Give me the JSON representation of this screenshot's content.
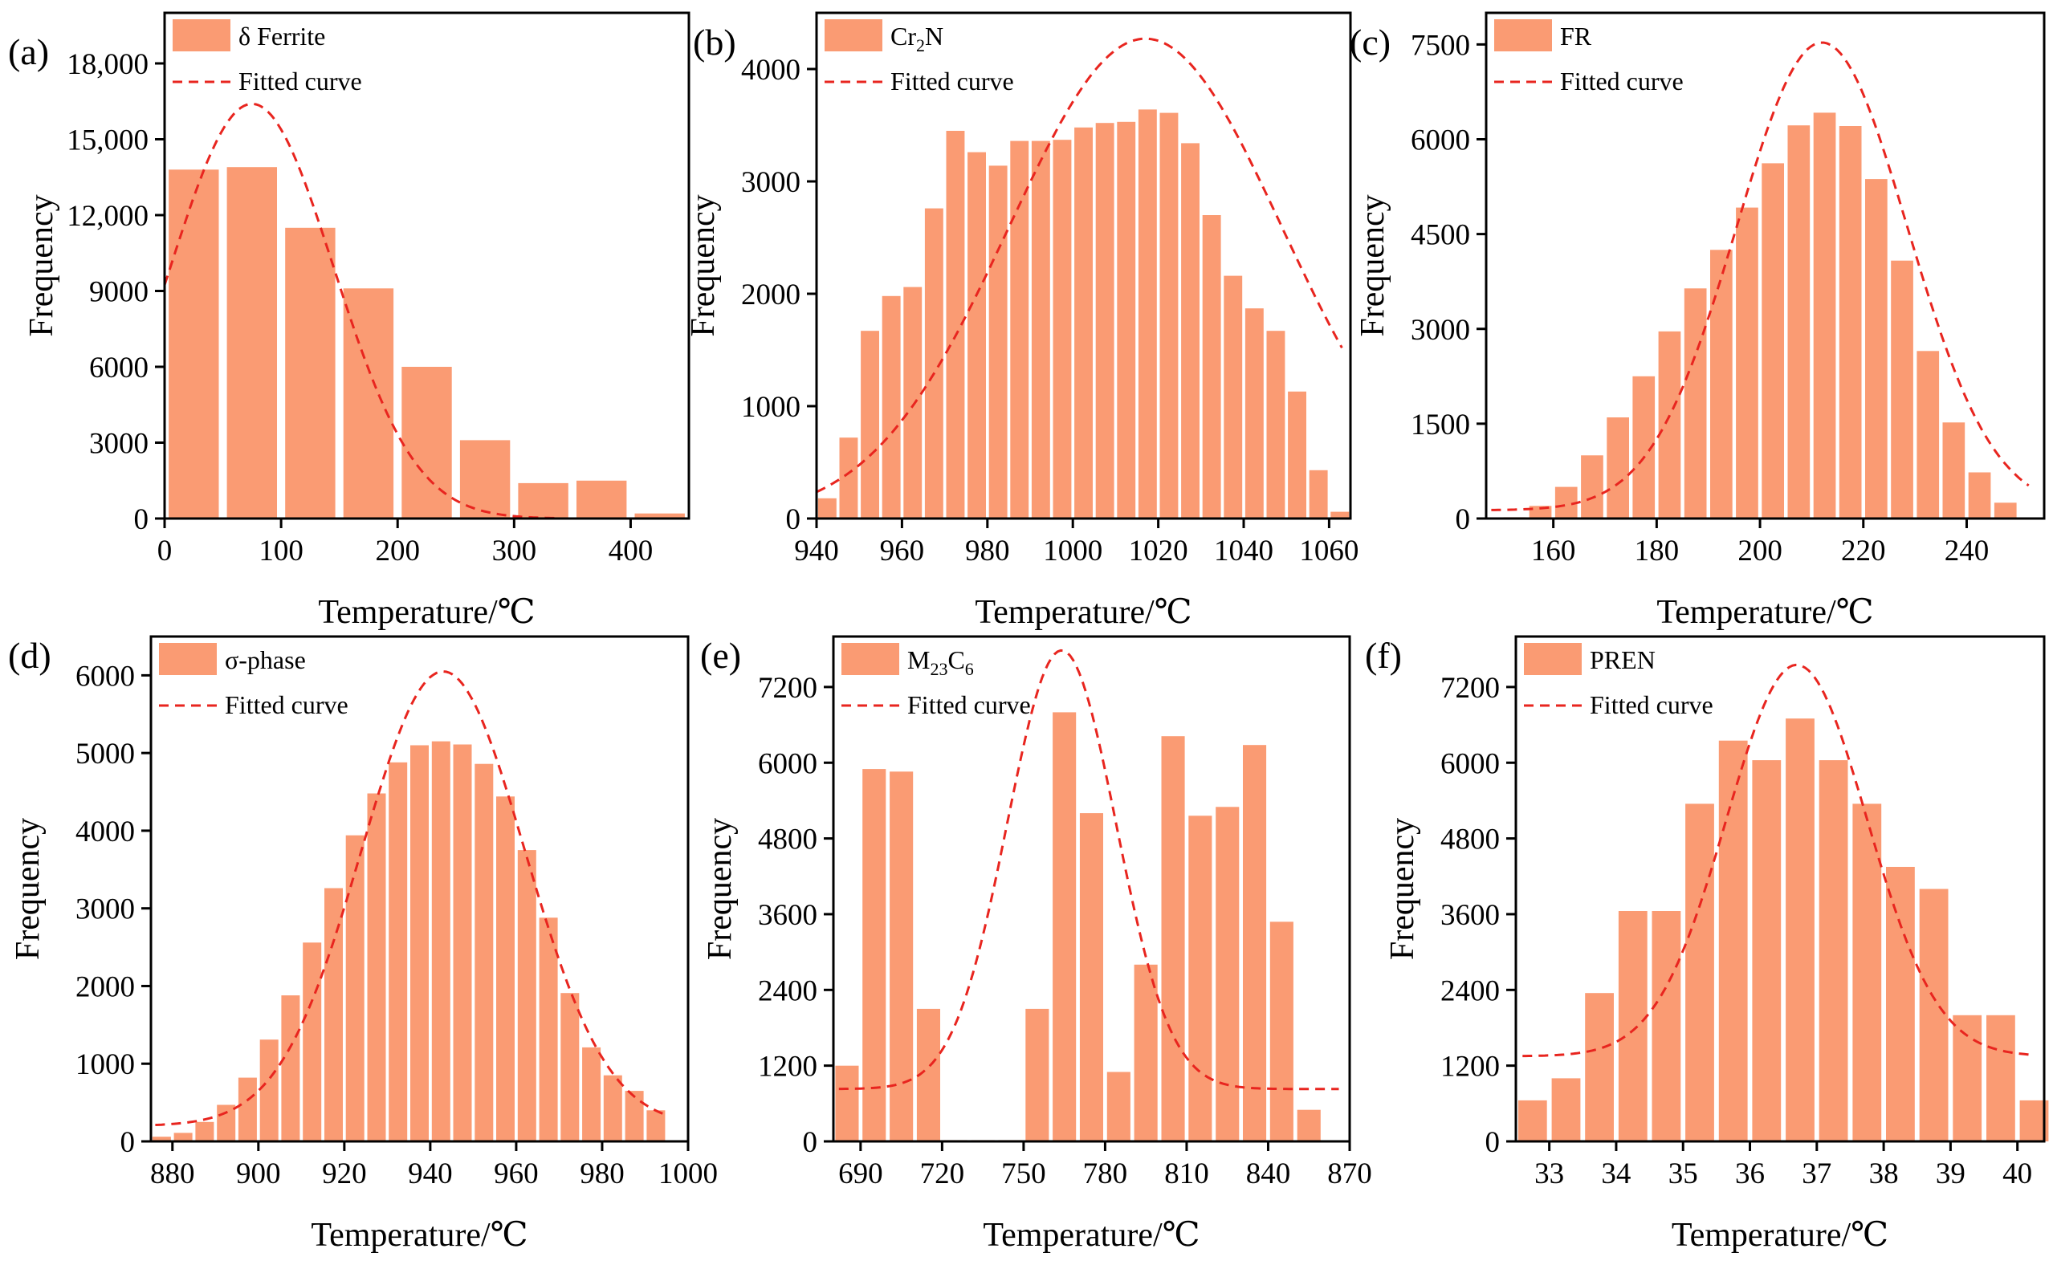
{
  "colors": {
    "bar": "#fa9b73",
    "fit": "#e8251f",
    "axis": "#000000"
  },
  "chart_data": [
    {
      "id": "a",
      "panel_label": "(a)",
      "type": "bar",
      "legend_bar": "δ Ferrite",
      "legend_sub": "",
      "legend_bar_suffix": "",
      "legend_fit": "Fitted curve",
      "xlabel": "Temperature/℃",
      "ylabel": "Frequency",
      "xlim": [
        0,
        450
      ],
      "ylim": [
        0,
        20000
      ],
      "xticks": [
        0,
        100,
        200,
        300,
        400
      ],
      "xtick_labels": [
        "0",
        "100",
        "200",
        "300",
        "400"
      ],
      "yticks": [
        0,
        3000,
        6000,
        9000,
        12000,
        15000,
        18000
      ],
      "ytick_labels": [
        "0",
        "3000",
        "6000",
        "9000",
        "12,000",
        "15,000",
        "18,000"
      ],
      "bin_width": 50,
      "bins": [
        {
          "x": 25,
          "y": 13800
        },
        {
          "x": 75,
          "y": 13900
        },
        {
          "x": 125,
          "y": 11500
        },
        {
          "x": 175,
          "y": 9100
        },
        {
          "x": 225,
          "y": 6000
        },
        {
          "x": 275,
          "y": 3100
        },
        {
          "x": 325,
          "y": 1400
        },
        {
          "x": 375,
          "y": 1500
        },
        {
          "x": 425,
          "y": 200
        }
      ],
      "fit": {
        "mu": 75,
        "sigma": 70,
        "amp": 16400,
        "base": 0,
        "x_from": 0,
        "x_to": 340
      }
    },
    {
      "id": "b",
      "panel_label": "(b)",
      "type": "bar",
      "legend_bar": "Cr",
      "legend_sub": "2",
      "legend_bar_suffix": "N",
      "legend_fit": "Fitted curve",
      "xlabel": "Temperature/℃",
      "ylabel": "Frequency",
      "xlim": [
        940,
        1065
      ],
      "ylim": [
        0,
        4500
      ],
      "xticks": [
        940,
        960,
        980,
        1000,
        1020,
        1040,
        1060
      ],
      "xtick_labels": [
        "940",
        "960",
        "980",
        "1000",
        "1020",
        "1040",
        "1060"
      ],
      "yticks": [
        0,
        1000,
        2000,
        3000,
        4000
      ],
      "ytick_labels": [
        "0",
        "1000",
        "2000",
        "3000",
        "4000"
      ],
      "bin_width": 5,
      "bins": [
        {
          "x": 942.5,
          "y": 180
        },
        {
          "x": 947.5,
          "y": 720
        },
        {
          "x": 952.5,
          "y": 1670
        },
        {
          "x": 957.5,
          "y": 1980
        },
        {
          "x": 962.5,
          "y": 2060
        },
        {
          "x": 967.5,
          "y": 2760
        },
        {
          "x": 972.5,
          "y": 3450
        },
        {
          "x": 977.5,
          "y": 3260
        },
        {
          "x": 982.5,
          "y": 3140
        },
        {
          "x": 987.5,
          "y": 3360
        },
        {
          "x": 992.5,
          "y": 3360
        },
        {
          "x": 997.5,
          "y": 3370
        },
        {
          "x": 1002.5,
          "y": 3480
        },
        {
          "x": 1007.5,
          "y": 3520
        },
        {
          "x": 1012.5,
          "y": 3530
        },
        {
          "x": 1017.5,
          "y": 3640
        },
        {
          "x": 1022.5,
          "y": 3610
        },
        {
          "x": 1027.5,
          "y": 3340
        },
        {
          "x": 1032.5,
          "y": 2700
        },
        {
          "x": 1037.5,
          "y": 2160
        },
        {
          "x": 1042.5,
          "y": 1870
        },
        {
          "x": 1047.5,
          "y": 1670
        },
        {
          "x": 1052.5,
          "y": 1130
        },
        {
          "x": 1057.5,
          "y": 430
        },
        {
          "x": 1062.5,
          "y": 60
        }
      ],
      "fit": {
        "mu": 1017,
        "sigma": 32,
        "amp": 4270,
        "base": 0,
        "x_from": 940,
        "x_to": 1063
      }
    },
    {
      "id": "c",
      "panel_label": "(c)",
      "type": "bar",
      "legend_bar": "FR",
      "legend_sub": "",
      "legend_bar_suffix": "",
      "legend_fit": "Fitted curve",
      "xlabel": "Temperature/℃",
      "ylabel": "Frequency",
      "xlim": [
        147,
        255
      ],
      "ylim": [
        0,
        8000
      ],
      "xticks": [
        160,
        180,
        200,
        220,
        240
      ],
      "xtick_labels": [
        "160",
        "180",
        "200",
        "220",
        "240"
      ],
      "yticks": [
        0,
        1500,
        3000,
        4500,
        6000,
        7500
      ],
      "ytick_labels": [
        "0",
        "1500",
        "3000",
        "4500",
        "6000",
        "7500"
      ],
      "bin_width": 5,
      "bins": [
        {
          "x": 152.5,
          "y": 20
        },
        {
          "x": 157.5,
          "y": 200
        },
        {
          "x": 162.5,
          "y": 500
        },
        {
          "x": 167.5,
          "y": 1000
        },
        {
          "x": 172.5,
          "y": 1600
        },
        {
          "x": 177.5,
          "y": 2250
        },
        {
          "x": 182.5,
          "y": 2960
        },
        {
          "x": 187.5,
          "y": 3640
        },
        {
          "x": 192.5,
          "y": 4250
        },
        {
          "x": 197.5,
          "y": 4920
        },
        {
          "x": 202.5,
          "y": 5620
        },
        {
          "x": 207.5,
          "y": 6220
        },
        {
          "x": 212.5,
          "y": 6420
        },
        {
          "x": 217.5,
          "y": 6210
        },
        {
          "x": 222.5,
          "y": 5370
        },
        {
          "x": 227.5,
          "y": 4080
        },
        {
          "x": 232.5,
          "y": 2650
        },
        {
          "x": 237.5,
          "y": 1520
        },
        {
          "x": 242.5,
          "y": 730
        },
        {
          "x": 247.5,
          "y": 250
        }
      ],
      "fit": {
        "mu": 212,
        "sigma": 16.5,
        "amp": 7400,
        "base": 130,
        "x_from": 148,
        "x_to": 252
      }
    },
    {
      "id": "d",
      "panel_label": "(d)",
      "type": "bar",
      "legend_bar": "σ-phase",
      "legend_sub": "",
      "legend_bar_suffix": "",
      "legend_fit": "Fitted curve",
      "xlabel": "Temperature/℃",
      "ylabel": "Frequency",
      "xlim": [
        875,
        1000
      ],
      "ylim": [
        0,
        6500
      ],
      "xticks": [
        880,
        900,
        920,
        940,
        960,
        980,
        1000
      ],
      "xtick_labels": [
        "880",
        "900",
        "920",
        "940",
        "960",
        "980",
        "1000"
      ],
      "yticks": [
        0,
        1000,
        2000,
        3000,
        4000,
        5000,
        6000
      ],
      "ytick_labels": [
        "0",
        "1000",
        "2000",
        "3000",
        "4000",
        "5000",
        "6000"
      ],
      "bin_width": 5,
      "bins": [
        {
          "x": 877.5,
          "y": 60
        },
        {
          "x": 882.5,
          "y": 110
        },
        {
          "x": 887.5,
          "y": 250
        },
        {
          "x": 892.5,
          "y": 470
        },
        {
          "x": 897.5,
          "y": 820
        },
        {
          "x": 902.5,
          "y": 1310
        },
        {
          "x": 907.5,
          "y": 1880
        },
        {
          "x": 912.5,
          "y": 2560
        },
        {
          "x": 917.5,
          "y": 3260
        },
        {
          "x": 922.5,
          "y": 3940
        },
        {
          "x": 927.5,
          "y": 4480
        },
        {
          "x": 932.5,
          "y": 4880
        },
        {
          "x": 937.5,
          "y": 5100
        },
        {
          "x": 942.5,
          "y": 5150
        },
        {
          "x": 947.5,
          "y": 5110
        },
        {
          "x": 952.5,
          "y": 4860
        },
        {
          "x": 957.5,
          "y": 4440
        },
        {
          "x": 962.5,
          "y": 3750
        },
        {
          "x": 967.5,
          "y": 2880
        },
        {
          "x": 972.5,
          "y": 1910
        },
        {
          "x": 977.5,
          "y": 1210
        },
        {
          "x": 982.5,
          "y": 850
        },
        {
          "x": 987.5,
          "y": 650
        },
        {
          "x": 992.5,
          "y": 400
        }
      ],
      "fit": {
        "mu": 943,
        "sigma": 19,
        "amp": 5850,
        "base": 200,
        "x_from": 876,
        "x_to": 995
      }
    },
    {
      "id": "e",
      "panel_label": "(e)",
      "type": "bar",
      "legend_bar": "M",
      "legend_sub": "23",
      "legend_bar_suffix": "C",
      "legend_sub2": "6",
      "legend_fit": "Fitted curve",
      "xlabel": "Temperature/℃",
      "ylabel": "Frequency",
      "xlim": [
        680,
        870
      ],
      "ylim": [
        0,
        8000
      ],
      "xticks": [
        690,
        720,
        750,
        780,
        810,
        840,
        870
      ],
      "xtick_labels": [
        "690",
        "720",
        "750",
        "780",
        "810",
        "840",
        "870"
      ],
      "yticks": [
        0,
        1200,
        2400,
        3600,
        4800,
        6000,
        7200
      ],
      "ytick_labels": [
        "0",
        "1200",
        "2400",
        "3600",
        "4800",
        "6000",
        "7200"
      ],
      "bin_width": 10,
      "bins": [
        {
          "x": 685,
          "y": 1200
        },
        {
          "x": 695,
          "y": 5900
        },
        {
          "x": 705,
          "y": 5860
        },
        {
          "x": 715,
          "y": 2100
        },
        {
          "x": 725,
          "y": 20
        },
        {
          "x": 735,
          "y": 20
        },
        {
          "x": 745,
          "y": 20
        },
        {
          "x": 755,
          "y": 2100
        },
        {
          "x": 765,
          "y": 6800
        },
        {
          "x": 775,
          "y": 5200
        },
        {
          "x": 785,
          "y": 1100
        },
        {
          "x": 795,
          "y": 2800
        },
        {
          "x": 805,
          "y": 6420
        },
        {
          "x": 815,
          "y": 5160
        },
        {
          "x": 825,
          "y": 5300
        },
        {
          "x": 835,
          "y": 6280
        },
        {
          "x": 845,
          "y": 3480
        },
        {
          "x": 855,
          "y": 500
        }
      ],
      "fit": {
        "mu": 764,
        "sigma": 20,
        "amp": 6950,
        "base": 830,
        "x_from": 682,
        "x_to": 866
      }
    },
    {
      "id": "f",
      "panel_label": "(f)",
      "type": "bar",
      "legend_bar": "PREN",
      "legend_sub": "",
      "legend_bar_suffix": "",
      "legend_fit": "Fitted curve",
      "xlabel": "Temperature/℃",
      "ylabel": "Frequency",
      "xlim": [
        32.5,
        40.4
      ],
      "ylim": [
        0,
        8000
      ],
      "xticks": [
        33,
        34,
        35,
        36,
        37,
        38,
        39,
        40
      ],
      "xtick_labels": [
        "33",
        "34",
        "35",
        "36",
        "37",
        "38",
        "39",
        "40"
      ],
      "yticks": [
        0,
        1200,
        2400,
        3600,
        4800,
        6000,
        7200
      ],
      "ytick_labels": [
        "0",
        "1200",
        "2400",
        "3600",
        "4800",
        "6000",
        "7200"
      ],
      "bin_width": 0.5,
      "bins": [
        {
          "x": 32.75,
          "y": 650
        },
        {
          "x": 33.25,
          "y": 1000
        },
        {
          "x": 33.75,
          "y": 2350
        },
        {
          "x": 34.25,
          "y": 3650
        },
        {
          "x": 34.75,
          "y": 3650
        },
        {
          "x": 35.25,
          "y": 5350
        },
        {
          "x": 35.75,
          "y": 6350
        },
        {
          "x": 36.25,
          "y": 6040
        },
        {
          "x": 36.75,
          "y": 6700
        },
        {
          "x": 37.25,
          "y": 6040
        },
        {
          "x": 37.75,
          "y": 5350
        },
        {
          "x": 38.25,
          "y": 4350
        },
        {
          "x": 38.75,
          "y": 4000
        },
        {
          "x": 39.25,
          "y": 2000
        },
        {
          "x": 39.75,
          "y": 2000
        },
        {
          "x": 40.25,
          "y": 650
        }
      ],
      "fit": {
        "mu": 36.7,
        "sigma": 1.05,
        "amp": 6200,
        "base": 1350,
        "x_from": 32.6,
        "x_to": 40.2
      }
    }
  ]
}
